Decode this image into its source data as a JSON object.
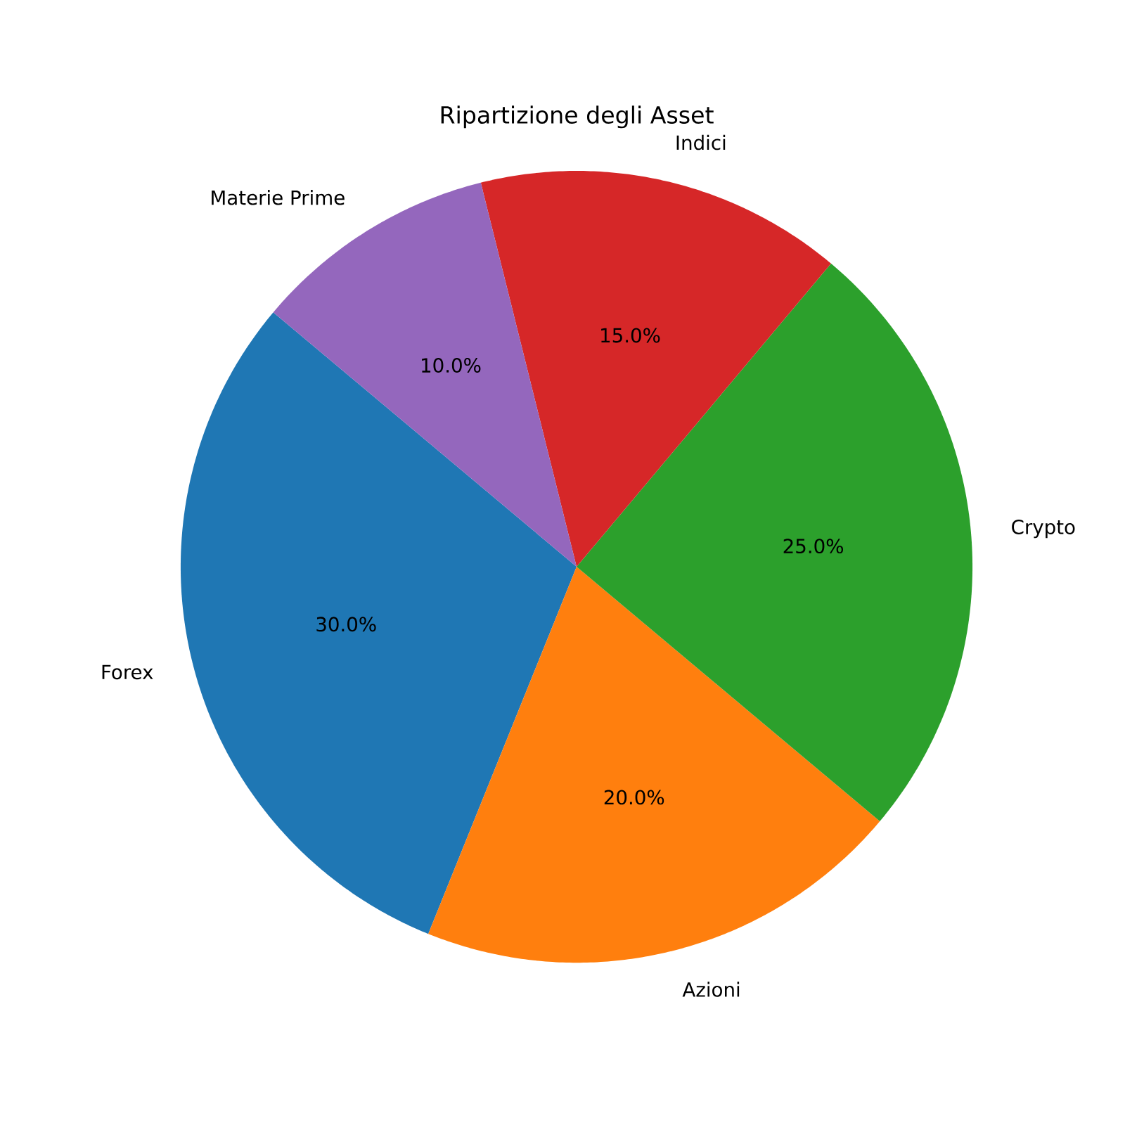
{
  "chart_data": {
    "type": "pie",
    "title": "Ripartizione degli Asset",
    "categories": [
      "Forex",
      "Azioni",
      "Crypto",
      "Indici",
      "Materie Prime"
    ],
    "values": [
      30,
      20,
      25,
      15,
      10
    ],
    "colors": [
      "#1f77b4",
      "#ff7f0e",
      "#2ca02c",
      "#d62728",
      "#9467bd"
    ],
    "value_labels": [
      "30.0%",
      "20.0%",
      "25.0%",
      "15.0%",
      "10.0%"
    ]
  }
}
